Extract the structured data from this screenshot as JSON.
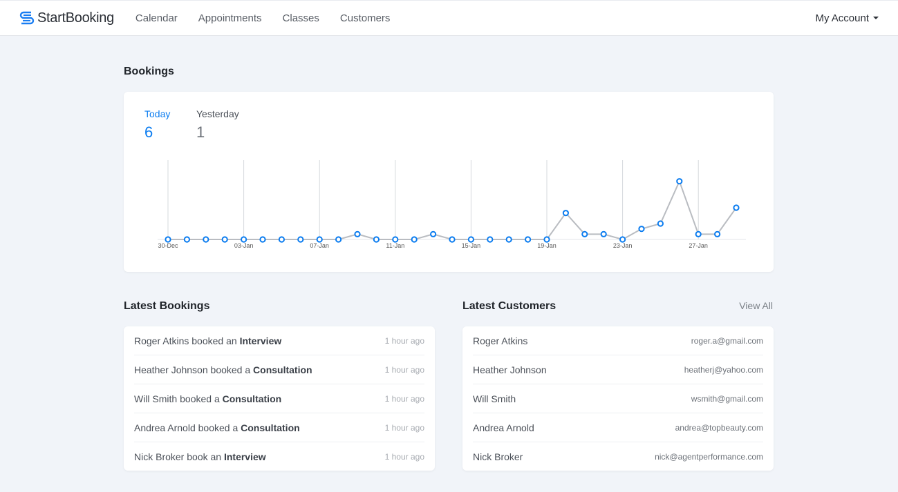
{
  "nav": {
    "brand": "StartBooking",
    "items": [
      "Calendar",
      "Appointments",
      "Classes",
      "Customers"
    ],
    "account": "My Account"
  },
  "bookings": {
    "title": "Bookings",
    "today_label": "Today",
    "today_value": "6",
    "yesterday_label": "Yesterday",
    "yesterday_value": "1"
  },
  "chart_data": {
    "type": "line",
    "x": [
      "30-Dec",
      "31-Dec",
      "01-Jan",
      "02-Jan",
      "03-Jan",
      "04-Jan",
      "05-Jan",
      "06-Jan",
      "07-Jan",
      "08-Jan",
      "09-Jan",
      "10-Jan",
      "11-Jan",
      "12-Jan",
      "13-Jan",
      "14-Jan",
      "15-Jan",
      "16-Jan",
      "17-Jan",
      "18-Jan",
      "19-Jan",
      "20-Jan",
      "21-Jan",
      "22-Jan",
      "23-Jan",
      "24-Jan",
      "25-Jan",
      "26-Jan",
      "27-Jan",
      "28-Jan",
      "29-Jan"
    ],
    "values": [
      0,
      0,
      0,
      0,
      0,
      0,
      0,
      0,
      0,
      0,
      1,
      0,
      0,
      0,
      1,
      0,
      0,
      0,
      0,
      0,
      0,
      5,
      1,
      1,
      0,
      2,
      3,
      11,
      1,
      1,
      6
    ],
    "tick_labels": [
      "30-Dec",
      "03-Jan",
      "07-Jan",
      "11-Jan",
      "15-Jan",
      "19-Jan",
      "23-Jan",
      "27-Jan"
    ],
    "ylim": [
      0,
      15
    ],
    "grid": "vertical",
    "line_color": "#b9bcc1",
    "point_color": "#0a7cf0"
  },
  "latest_bookings": {
    "title": "Latest Bookings",
    "items": [
      {
        "name": "Roger Atkins",
        "verb": "booked an",
        "service": "Interview",
        "time": "1 hour ago"
      },
      {
        "name": "Heather Johnson",
        "verb": "booked a",
        "service": "Consultation",
        "time": "1 hour ago"
      },
      {
        "name": "Will Smith",
        "verb": "booked a",
        "service": "Consultation",
        "time": "1 hour ago"
      },
      {
        "name": "Andrea Arnold",
        "verb": "booked a",
        "service": "Consultation",
        "time": "1 hour ago"
      },
      {
        "name": "Nick Broker",
        "verb": "book an",
        "service": "Interview",
        "time": "1 hour ago"
      }
    ]
  },
  "latest_customers": {
    "title": "Latest Customers",
    "view_all": "View All",
    "items": [
      {
        "name": "Roger Atkins",
        "email": "roger.a@gmail.com"
      },
      {
        "name": "Heather Johnson",
        "email": "heatherj@yahoo.com"
      },
      {
        "name": "Will Smith",
        "email": "wsmith@gmail.com"
      },
      {
        "name": "Andrea Arnold",
        "email": "andrea@topbeauty.com"
      },
      {
        "name": "Nick Broker",
        "email": "nick@agentperformance.com"
      }
    ]
  }
}
